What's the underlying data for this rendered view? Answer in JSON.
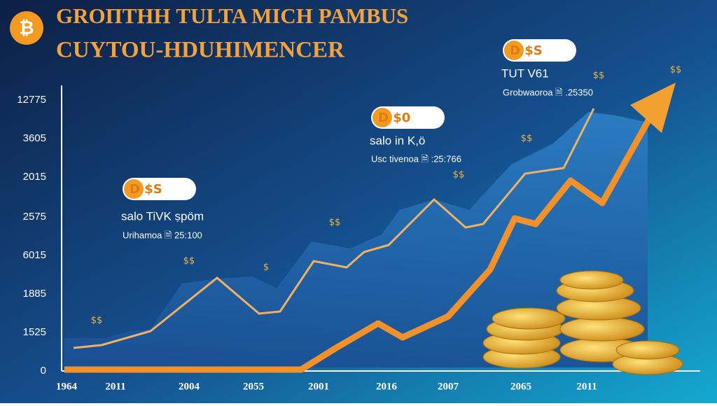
{
  "header": {
    "title_line1": "GRОΠΤΗΗ TULTA MICH PAMBUS",
    "title_line2": "CUYTOU-HDUHIMENCER",
    "logo": "₿"
  },
  "y_axis_labels": [
    "12775",
    "3605",
    "2015",
    "2575",
    "6015",
    "1885",
    "1525",
    "0"
  ],
  "x_axis_labels": [
    "1964",
    "2011",
    "2004",
    "2055",
    "2001",
    "2016",
    "2007",
    "2065",
    "2011"
  ],
  "callouts": [
    {
      "badge": "D $S",
      "title": "salo TiVK ṣpöm",
      "detail": "Urihamoa 🗎 25:100"
    },
    {
      "badge": "D $0",
      "title": "salo in K,ö",
      "detail": "Usc tivenoa 🗎 :25:766"
    },
    {
      "badge": "D $S",
      "title": "TUT V61",
      "detail": "Grobwaoroa 🗎 .25350"
    }
  ],
  "sparkles": [
    "$$",
    "$$",
    "$",
    "$$",
    "$$",
    "$$",
    "$$",
    "$$"
  ]
}
